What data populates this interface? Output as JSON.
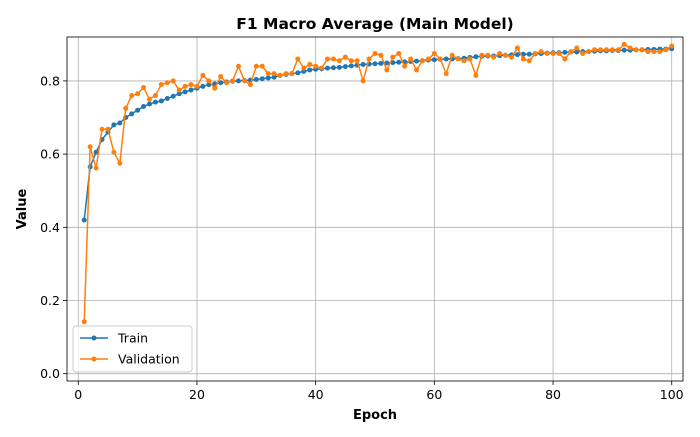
{
  "chart_data": {
    "type": "line",
    "title": "F1 Macro Average (Main Model)",
    "xlabel": "Epoch",
    "ylabel": "Value",
    "xlim": [
      -1.9,
      101.9
    ],
    "ylim": [
      -0.02,
      0.92
    ],
    "xticks": [
      0,
      20,
      40,
      60,
      80,
      100
    ],
    "yticks": [
      0.0,
      0.2,
      0.4,
      0.6,
      0.8
    ],
    "ytick_labels": [
      "0.0",
      "0.2",
      "0.4",
      "0.6",
      "0.8"
    ],
    "grid": true,
    "legend_position": "lower-left",
    "x": [
      1,
      2,
      3,
      4,
      5,
      6,
      7,
      8,
      9,
      10,
      11,
      12,
      13,
      14,
      15,
      16,
      17,
      18,
      19,
      20,
      21,
      22,
      23,
      24,
      25,
      26,
      27,
      28,
      29,
      30,
      31,
      32,
      33,
      34,
      35,
      36,
      37,
      38,
      39,
      40,
      41,
      42,
      43,
      44,
      45,
      46,
      47,
      48,
      49,
      50,
      51,
      52,
      53,
      54,
      55,
      56,
      57,
      58,
      59,
      60,
      61,
      62,
      63,
      64,
      65,
      66,
      67,
      68,
      69,
      70,
      71,
      72,
      73,
      74,
      75,
      76,
      77,
      78,
      79,
      80,
      81,
      82,
      83,
      84,
      85,
      86,
      87,
      88,
      89,
      90,
      91,
      92,
      93,
      94,
      95,
      96,
      97,
      98,
      99,
      100
    ],
    "series": [
      {
        "name": "Train",
        "color": "#1f77b4",
        "values": [
          0.42,
          0.565,
          0.605,
          0.64,
          0.66,
          0.68,
          0.685,
          0.7,
          0.71,
          0.72,
          0.73,
          0.737,
          0.742,
          0.745,
          0.752,
          0.758,
          0.765,
          0.77,
          0.775,
          0.78,
          0.785,
          0.79,
          0.792,
          0.795,
          0.797,
          0.799,
          0.8,
          0.801,
          0.802,
          0.804,
          0.806,
          0.808,
          0.81,
          0.815,
          0.818,
          0.82,
          0.822,
          0.826,
          0.83,
          0.832,
          0.833,
          0.835,
          0.836,
          0.837,
          0.839,
          0.841,
          0.843,
          0.845,
          0.846,
          0.847,
          0.848,
          0.849,
          0.85,
          0.851,
          0.852,
          0.853,
          0.854,
          0.855,
          0.857,
          0.858,
          0.859,
          0.86,
          0.86,
          0.861,
          0.862,
          0.864,
          0.866,
          0.867,
          0.868,
          0.868,
          0.869,
          0.87,
          0.871,
          0.872,
          0.873,
          0.873,
          0.874,
          0.875,
          0.876,
          0.877,
          0.877,
          0.878,
          0.879,
          0.879,
          0.88,
          0.88,
          0.881,
          0.882,
          0.882,
          0.883,
          0.883,
          0.884,
          0.884,
          0.885,
          0.885,
          0.886,
          0.886,
          0.887,
          0.887,
          0.888
        ]
      },
      {
        "name": "Validation",
        "color": "#ff7f0e",
        "values": [
          0.142,
          0.62,
          0.562,
          0.668,
          0.668,
          0.605,
          0.575,
          0.725,
          0.76,
          0.765,
          0.782,
          0.75,
          0.76,
          0.79,
          0.795,
          0.8,
          0.775,
          0.785,
          0.79,
          0.785,
          0.815,
          0.8,
          0.78,
          0.812,
          0.795,
          0.8,
          0.84,
          0.8,
          0.79,
          0.84,
          0.84,
          0.82,
          0.82,
          0.815,
          0.82,
          0.82,
          0.86,
          0.835,
          0.845,
          0.84,
          0.835,
          0.86,
          0.86,
          0.855,
          0.865,
          0.855,
          0.855,
          0.8,
          0.86,
          0.875,
          0.87,
          0.83,
          0.865,
          0.875,
          0.84,
          0.86,
          0.83,
          0.855,
          0.86,
          0.875,
          0.86,
          0.82,
          0.87,
          0.86,
          0.855,
          0.86,
          0.815,
          0.87,
          0.87,
          0.865,
          0.875,
          0.87,
          0.865,
          0.89,
          0.86,
          0.855,
          0.875,
          0.88,
          0.875,
          0.875,
          0.875,
          0.86,
          0.88,
          0.89,
          0.875,
          0.88,
          0.885,
          0.885,
          0.885,
          0.885,
          0.885,
          0.9,
          0.89,
          0.885,
          0.885,
          0.88,
          0.88,
          0.88,
          0.885,
          0.895
        ]
      }
    ]
  }
}
